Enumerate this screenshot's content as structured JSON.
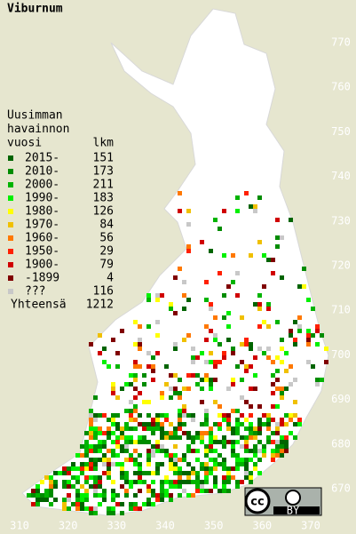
{
  "title": "Viburnum",
  "legend": {
    "heading": [
      "Uusimman",
      "havainnon",
      "vuosi"
    ],
    "count_heading": "lkm",
    "rows": [
      {
        "label": "2015-",
        "count": 151,
        "color": "#006400"
      },
      {
        "label": "2010-",
        "count": 173,
        "color": "#008c00"
      },
      {
        "label": "2000-",
        "count": 211,
        "color": "#00b400"
      },
      {
        "label": "1990-",
        "count": 183,
        "color": "#00f000"
      },
      {
        "label": "1980-",
        "count": 126,
        "color": "#ffff00"
      },
      {
        "label": "1970-",
        "count": 84,
        "color": "#f0c000"
      },
      {
        "label": "1960-",
        "count": 56,
        "color": "#ff7800"
      },
      {
        "label": "1950-",
        "count": 29,
        "color": "#ff2000"
      },
      {
        "label": "1900-",
        "count": 79,
        "color": "#d00000"
      },
      {
        "label": "-1899",
        "count": 4,
        "color": "#800000"
      },
      {
        "label": "???",
        "count": 116,
        "color": "#c8c8c8"
      }
    ],
    "total_label": "Yhteensä",
    "total": 1212
  },
  "x_labels": [
    310,
    320,
    330,
    340,
    350,
    360,
    370
  ],
  "y_labels": [
    770,
    760,
    750,
    740,
    730,
    720,
    710,
    700,
    690,
    680,
    670
  ],
  "license": "BY"
}
